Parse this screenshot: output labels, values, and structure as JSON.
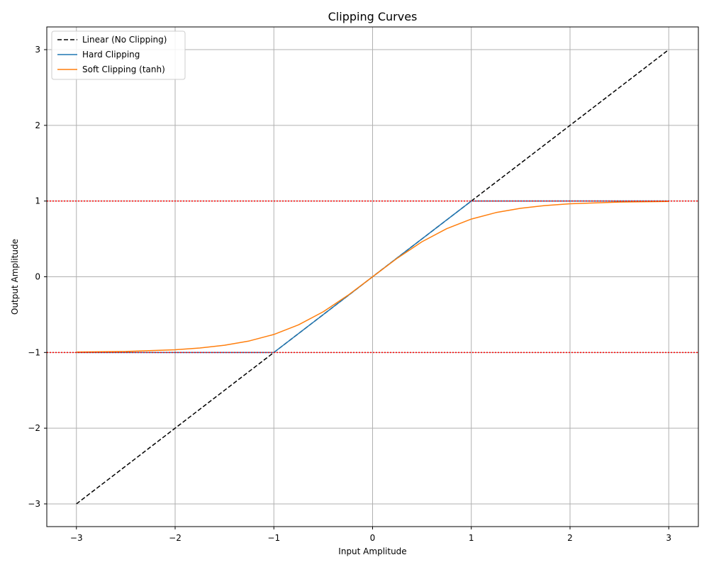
{
  "chart_data": {
    "type": "line",
    "title": "Clipping Curves",
    "xlabel": "Input Amplitude",
    "ylabel": "Output Amplitude",
    "xlim": [
      -3.3,
      3.3
    ],
    "ylim": [
      -3.3,
      3.3
    ],
    "xticks": [
      -3,
      -2,
      -1,
      0,
      1,
      2,
      3
    ],
    "yticks": [
      -3,
      -2,
      -1,
      0,
      1,
      2,
      3
    ],
    "xtick_labels": [
      "−3",
      "−2",
      "−1",
      "0",
      "1",
      "2",
      "3"
    ],
    "ytick_labels": [
      "−3",
      "−2",
      "−1",
      "0",
      "1",
      "2",
      "3"
    ],
    "grid": true,
    "legend_position": "top-left",
    "series": [
      {
        "name": "Linear (No Clipping)",
        "color": "#000000",
        "dash": "dashed",
        "x": [
          -3,
          3
        ],
        "y": [
          -3,
          3
        ]
      },
      {
        "name": "Hard Clipping",
        "color": "#1f77b4",
        "dash": "solid",
        "x": [
          -3,
          -1,
          1,
          3
        ],
        "y": [
          -1,
          -1,
          1,
          1
        ]
      },
      {
        "name": "Soft Clipping (tanh)",
        "color": "#ff7f0e",
        "dash": "solid",
        "x": [
          -3,
          -2.5,
          -2,
          -1.75,
          -1.5,
          -1.25,
          -1,
          -0.75,
          -0.5,
          -0.25,
          0,
          0.25,
          0.5,
          0.75,
          1,
          1.25,
          1.5,
          1.75,
          2,
          2.5,
          3
        ],
        "y": [
          -0.995,
          -0.987,
          -0.964,
          -0.941,
          -0.905,
          -0.848,
          -0.762,
          -0.635,
          -0.462,
          -0.245,
          0,
          0.245,
          0.462,
          0.635,
          0.762,
          0.848,
          0.905,
          0.941,
          0.964,
          0.987,
          0.995
        ]
      }
    ],
    "reference_lines": [
      {
        "orientation": "horizontal",
        "y": 1,
        "color": "#ff0000",
        "dash": "dotted"
      },
      {
        "orientation": "horizontal",
        "y": -1,
        "color": "#ff0000",
        "dash": "dotted"
      }
    ]
  }
}
